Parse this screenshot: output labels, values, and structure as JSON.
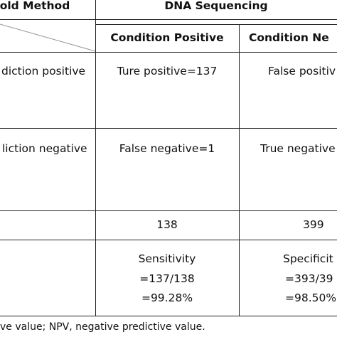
{
  "table": {
    "corner_label": "Gold Method",
    "group_header": "DNA Sequencing",
    "columns": [
      "Condition Positive",
      "Condition Ne"
    ],
    "rows": [
      {
        "label": "diction positive",
        "cells": [
          "Ture positive=137",
          "False positiv"
        ]
      },
      {
        "label": "liction negative",
        "cells": [
          "False negative=1",
          "True negative"
        ]
      },
      {
        "label": "",
        "cells": [
          "138",
          "399"
        ]
      },
      {
        "label": "",
        "cells": [
          [
            "Sensitivity",
            "=137/138",
            "=99.28%"
          ],
          [
            "Specificit",
            "=393/39",
            "=98.50%"
          ]
        ]
      }
    ]
  },
  "footnote": "ve value; NPV, negative predictive value."
}
